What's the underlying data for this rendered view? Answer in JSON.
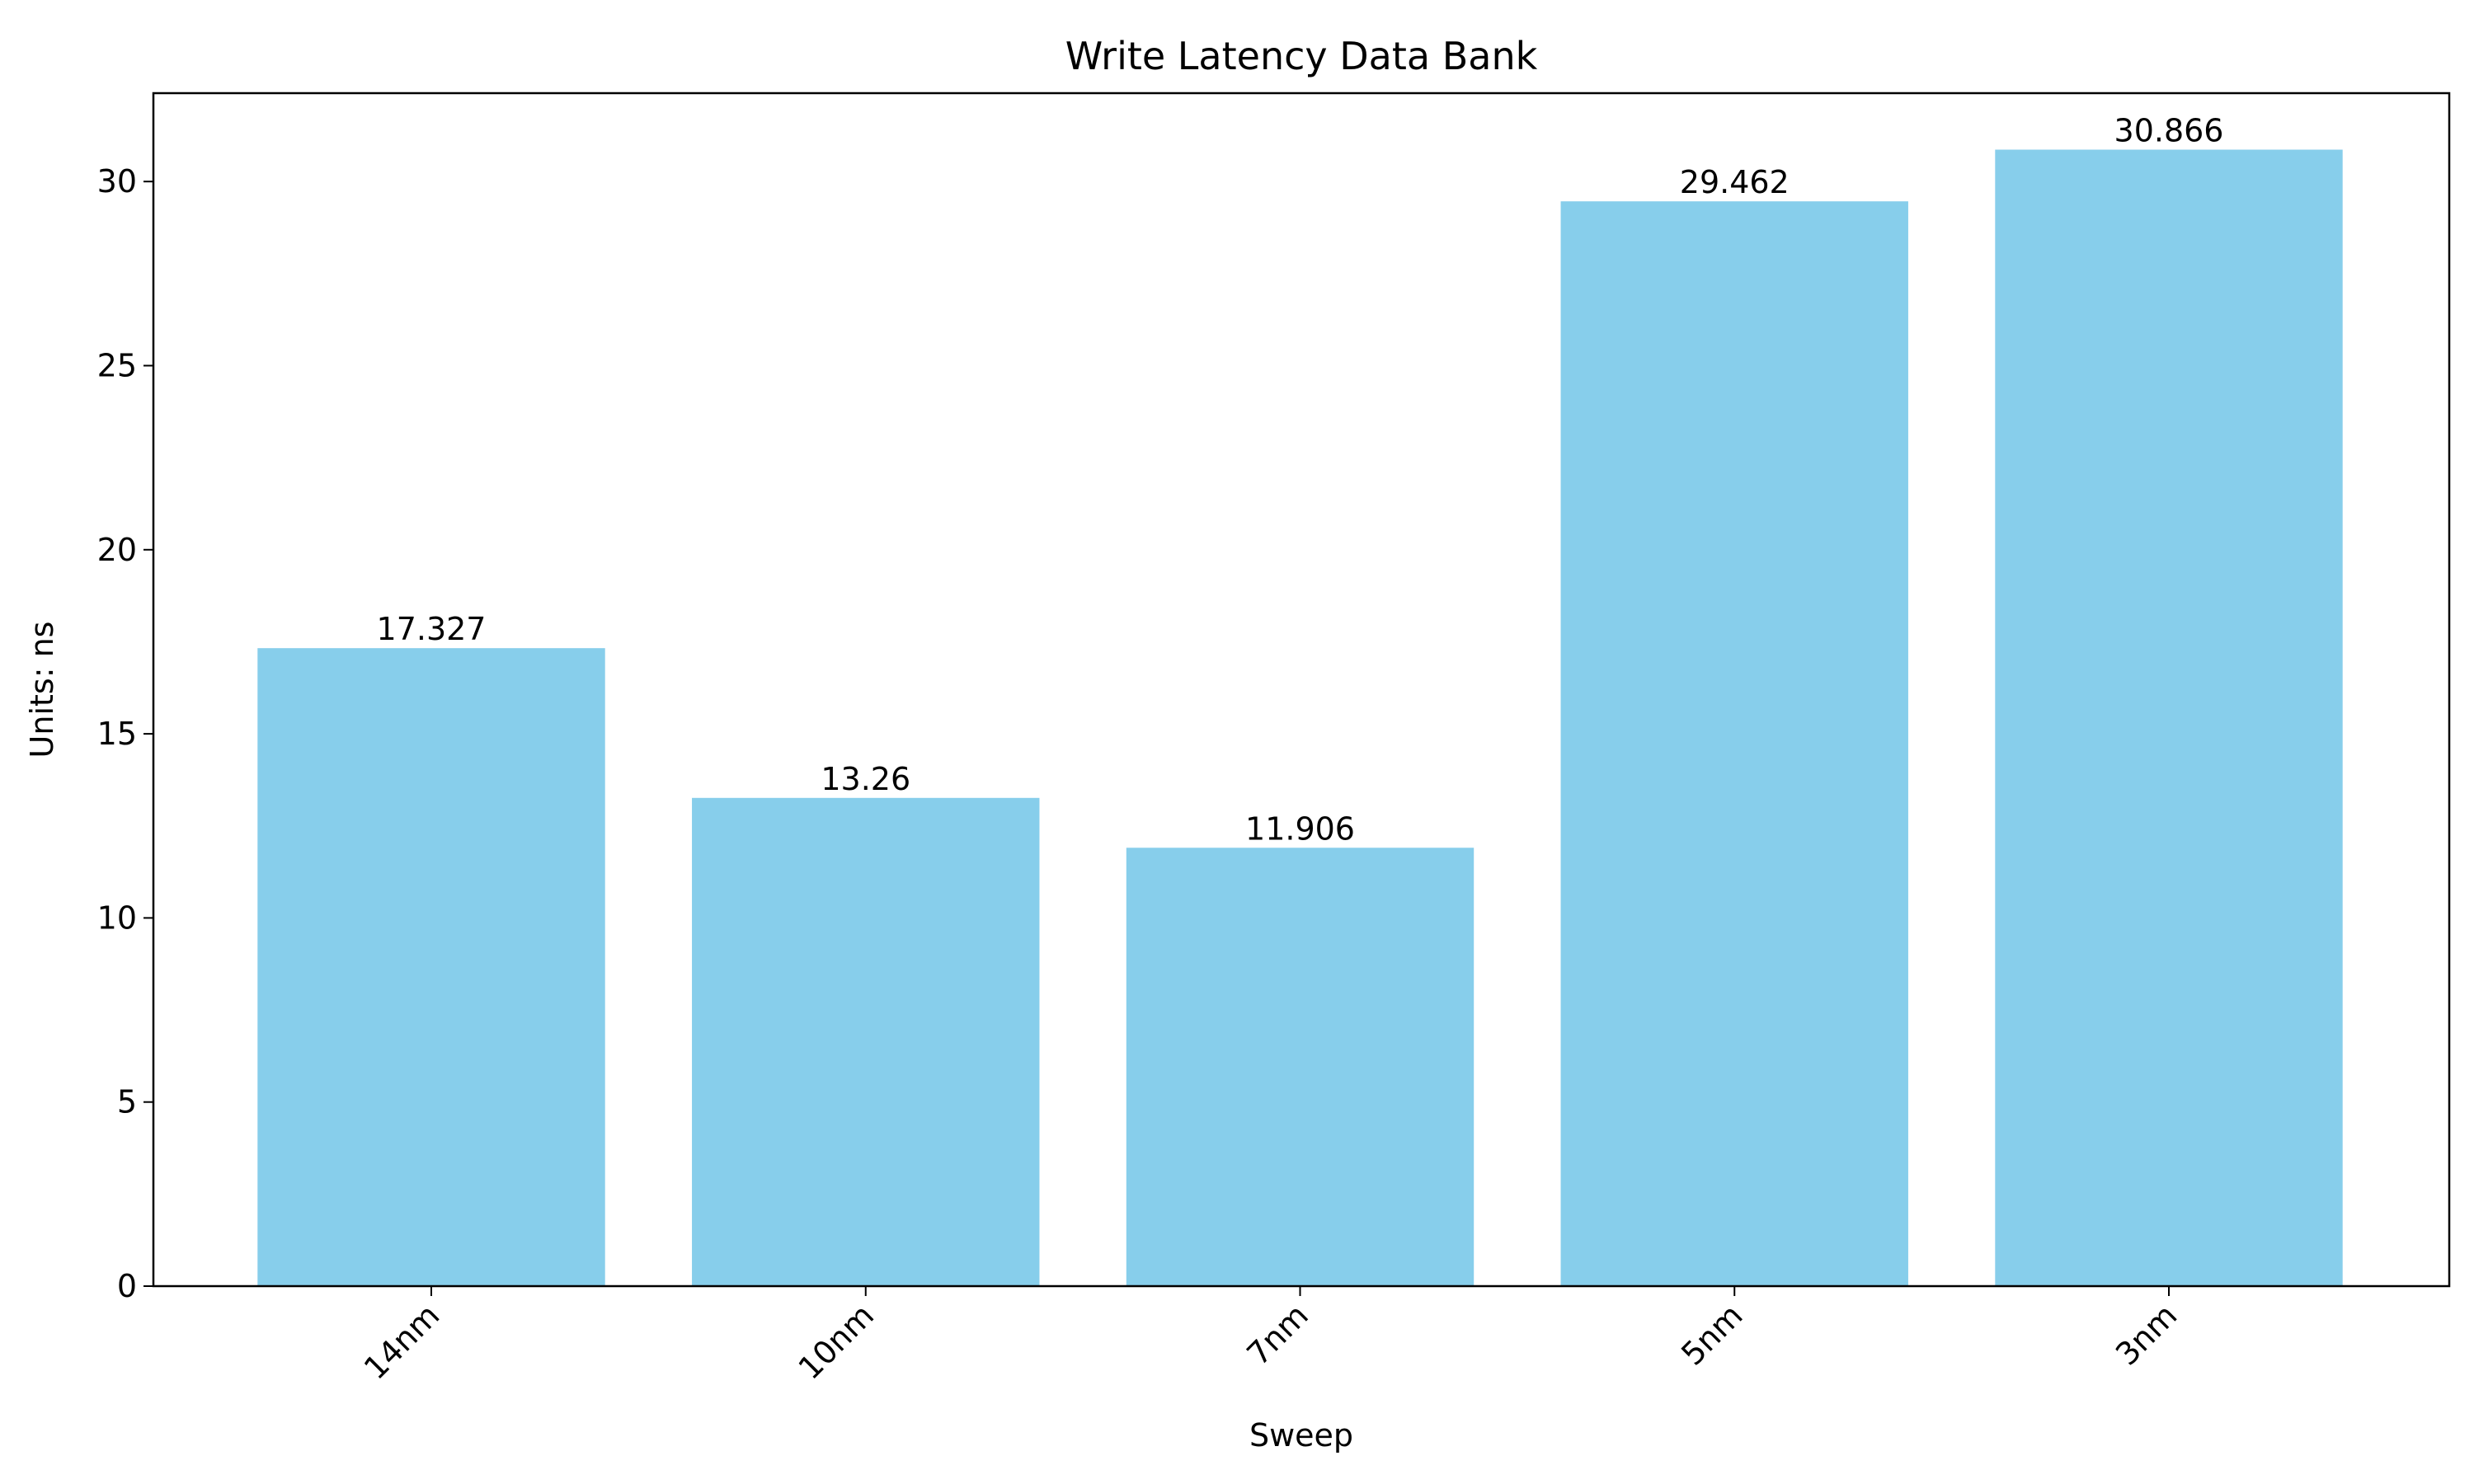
{
  "chart_data": {
    "type": "bar",
    "title": "Write Latency Data Bank",
    "xlabel": "Sweep",
    "ylabel": "Units: ns",
    "categories": [
      "14nm",
      "10nm",
      "7nm",
      "5nm",
      "3nm"
    ],
    "values": [
      17.327,
      13.26,
      11.906,
      29.462,
      30.866
    ],
    "value_labels": [
      "17.327",
      "13.26",
      "11.906",
      "29.462",
      "30.866"
    ],
    "ylim": [
      0,
      32.4
    ],
    "yticks": [
      0,
      5,
      10,
      15,
      20,
      25,
      30
    ],
    "grid": false,
    "legend": "none",
    "colors": {
      "bar": "#87CEEB",
      "axis": "#000000",
      "text": "#000000"
    }
  }
}
